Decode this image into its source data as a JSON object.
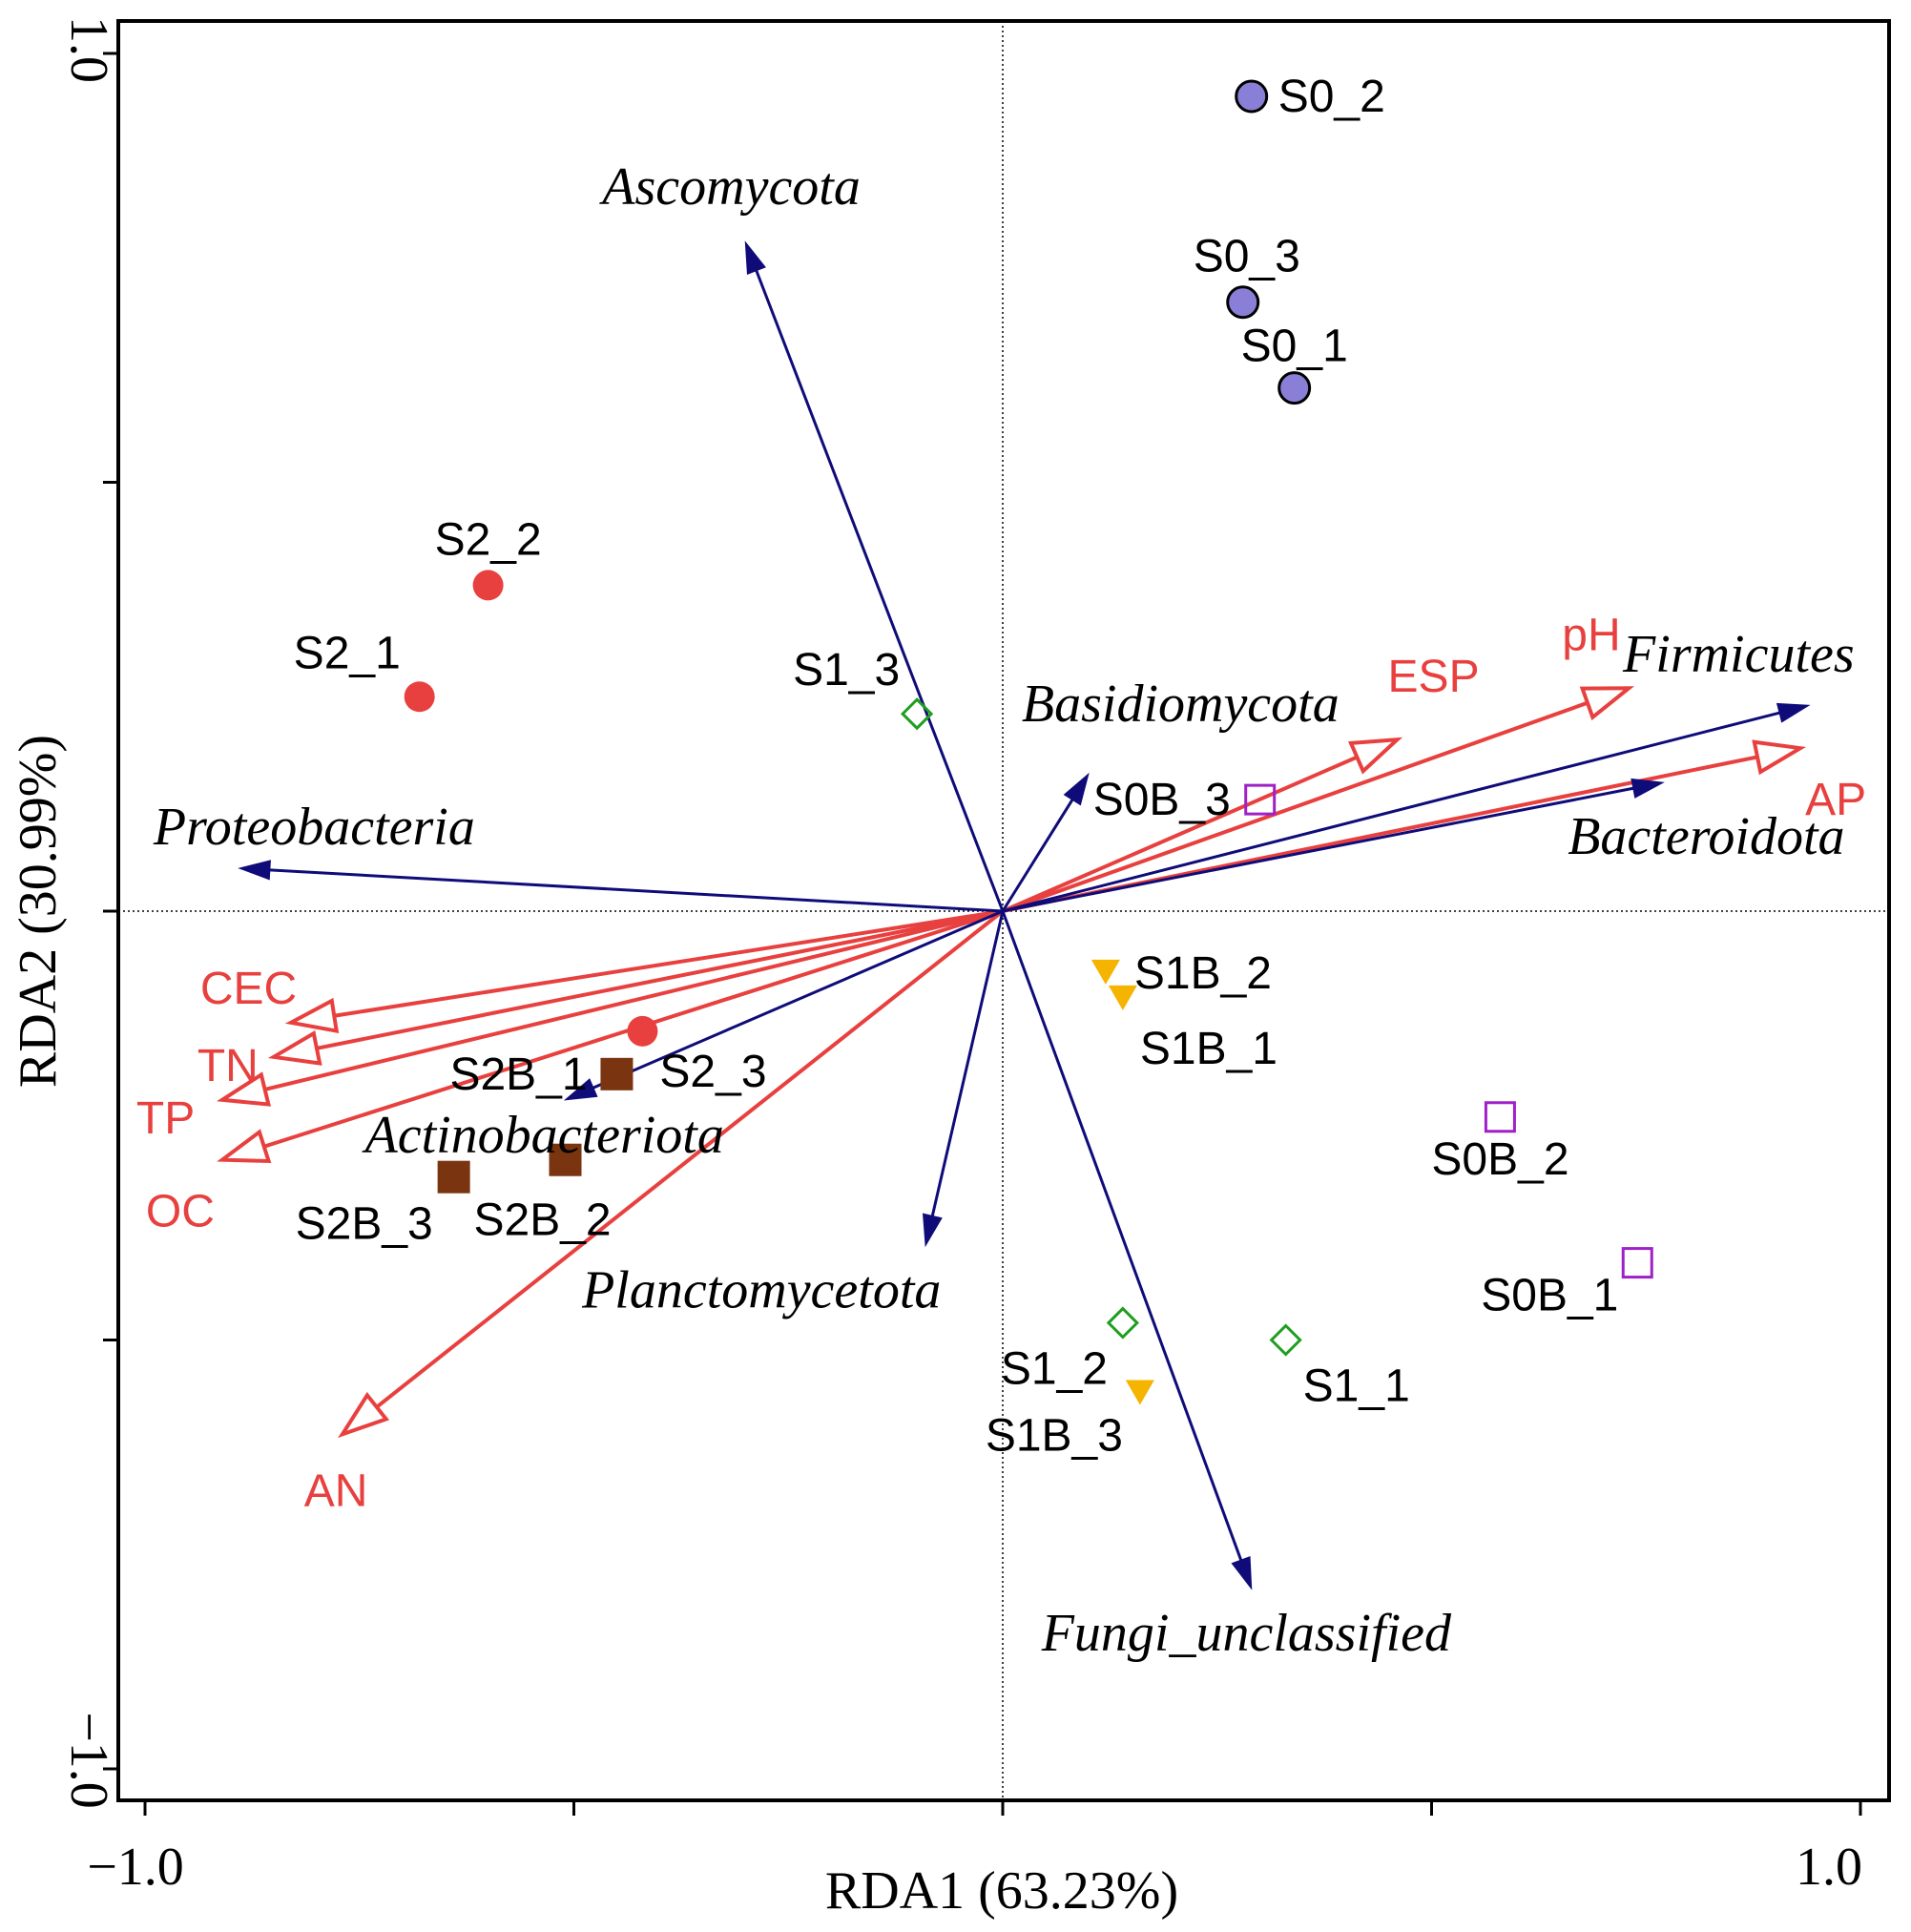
{
  "chart_data": {
    "type": "scatter",
    "subtype": "RDA biplot",
    "title": "",
    "xlabel": "RDA1 (63.23%)",
    "ylabel": "RDA2 (30.99%)",
    "xlim": [
      -1.0,
      1.0
    ],
    "ylim": [
      -1.0,
      1.0
    ],
    "x_tick_labels": [
      "−1.0",
      "1.0"
    ],
    "y_tick_labels": [
      "1.0",
      "−1.0"
    ],
    "colors": {
      "env": "#e8403e",
      "taxa": "#0f0c79",
      "S0": "#8a7fd6",
      "S0B": "#a020c8",
      "S1": "#1f9e1f",
      "S1B": "#f4b400",
      "S2": "#e8403e",
      "S2B": "#7a3410"
    },
    "sample_groups": [
      {
        "name": "S0",
        "marker": "circle-filled",
        "points": [
          {
            "label": "S0_1",
            "x": 0.34,
            "y": 0.61
          },
          {
            "label": "S0_2",
            "x": 0.29,
            "y": 0.95
          },
          {
            "label": "S0_3",
            "x": 0.28,
            "y": 0.71
          }
        ]
      },
      {
        "name": "S0B",
        "marker": "square-open",
        "points": [
          {
            "label": "S0B_1",
            "x": 0.74,
            "y": -0.41
          },
          {
            "label": "S0B_2",
            "x": 0.58,
            "y": -0.24
          },
          {
            "label": "S0B_3",
            "x": 0.3,
            "y": 0.13
          }
        ]
      },
      {
        "name": "S1",
        "marker": "diamond-open",
        "points": [
          {
            "label": "S1_1",
            "x": 0.33,
            "y": -0.5
          },
          {
            "label": "S1_2",
            "x": 0.14,
            "y": -0.48
          },
          {
            "label": "S1_3",
            "x": -0.1,
            "y": 0.23
          }
        ]
      },
      {
        "name": "S1B",
        "marker": "triangle-down",
        "points": [
          {
            "label": "S1B_1",
            "x": 0.14,
            "y": -0.1
          },
          {
            "label": "S1B_2",
            "x": 0.12,
            "y": -0.07
          },
          {
            "label": "S1B_3",
            "x": 0.16,
            "y": -0.56
          }
        ]
      },
      {
        "name": "S2",
        "marker": "circle-filled",
        "points": [
          {
            "label": "S2_1",
            "x": -0.68,
            "y": 0.25
          },
          {
            "label": "S2_2",
            "x": -0.6,
            "y": 0.38
          },
          {
            "label": "S2_3",
            "x": -0.42,
            "y": -0.14
          }
        ]
      },
      {
        "name": "S2B",
        "marker": "square-filled",
        "points": [
          {
            "label": "S2B_1",
            "x": -0.45,
            "y": -0.19
          },
          {
            "label": "S2B_2",
            "x": -0.51,
            "y": -0.29
          },
          {
            "label": "S2B_3",
            "x": -0.64,
            "y": -0.31
          }
        ]
      }
    ],
    "env_vectors": [
      {
        "label": "pH",
        "x": 0.73,
        "y": 0.26
      },
      {
        "label": "ESP",
        "x": 0.46,
        "y": 0.2
      },
      {
        "label": "AP",
        "x": 0.93,
        "y": 0.19
      },
      {
        "label": "CEC",
        "x": -0.83,
        "y": -0.13
      },
      {
        "label": "TN",
        "x": -0.85,
        "y": -0.17
      },
      {
        "label": "TP",
        "x": -0.91,
        "y": -0.22
      },
      {
        "label": "OC",
        "x": -0.91,
        "y": -0.29
      },
      {
        "label": "AN",
        "x": -0.77,
        "y": -0.61
      }
    ],
    "taxa_vectors": [
      {
        "label": "Ascomycota",
        "x": -0.3,
        "y": 0.78
      },
      {
        "label": "Basidiomycota",
        "x": 0.1,
        "y": 0.16
      },
      {
        "label": "Firmicutes",
        "x": 0.94,
        "y": 0.24
      },
      {
        "label": "Bacteroidota",
        "x": 0.77,
        "y": 0.15
      },
      {
        "label": "Proteobacteria",
        "x": -0.89,
        "y": 0.05
      },
      {
        "label": "Actinobacteriota",
        "x": -0.51,
        "y": -0.22
      },
      {
        "label": "Planctomycetota",
        "x": -0.09,
        "y": -0.39
      },
      {
        "label": "Fungi_unclassified",
        "x": 0.29,
        "y": -0.79
      }
    ]
  }
}
